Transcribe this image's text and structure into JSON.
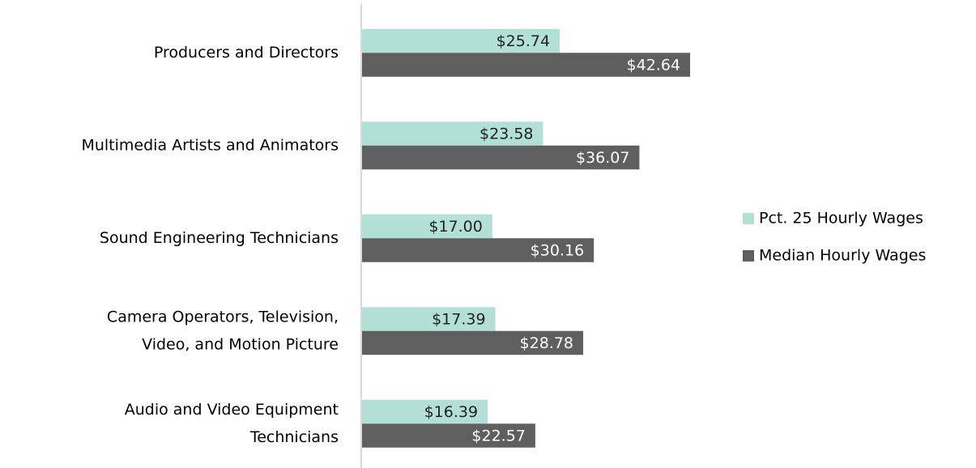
{
  "chart_data": {
    "type": "bar",
    "orientation": "horizontal",
    "categories": [
      [
        "Producers and Directors"
      ],
      [
        "Multimedia Artists and Animators"
      ],
      [
        "Sound Engineering Technicians"
      ],
      [
        "Camera Operators, Television,",
        "Video, and Motion Picture"
      ],
      [
        "Audio and Video Equipment",
        "Technicians"
      ]
    ],
    "series": [
      {
        "name": "Pct. 25 Hourly Wages",
        "color": "#b3e0d6",
        "values": [
          25.74,
          23.58,
          17.0,
          17.39,
          16.39
        ],
        "value_labels": [
          "$25.74",
          "$23.58",
          "$17.00",
          "$17.39",
          "$16.39"
        ]
      },
      {
        "name": "Median Hourly Wages",
        "color": "#5f5f5f",
        "values": [
          42.64,
          36.07,
          30.16,
          28.78,
          22.57
        ],
        "value_labels": [
          "$42.64",
          "$36.07",
          "$30.16",
          "$28.78",
          "$22.57"
        ]
      }
    ],
    "legend": "right"
  }
}
